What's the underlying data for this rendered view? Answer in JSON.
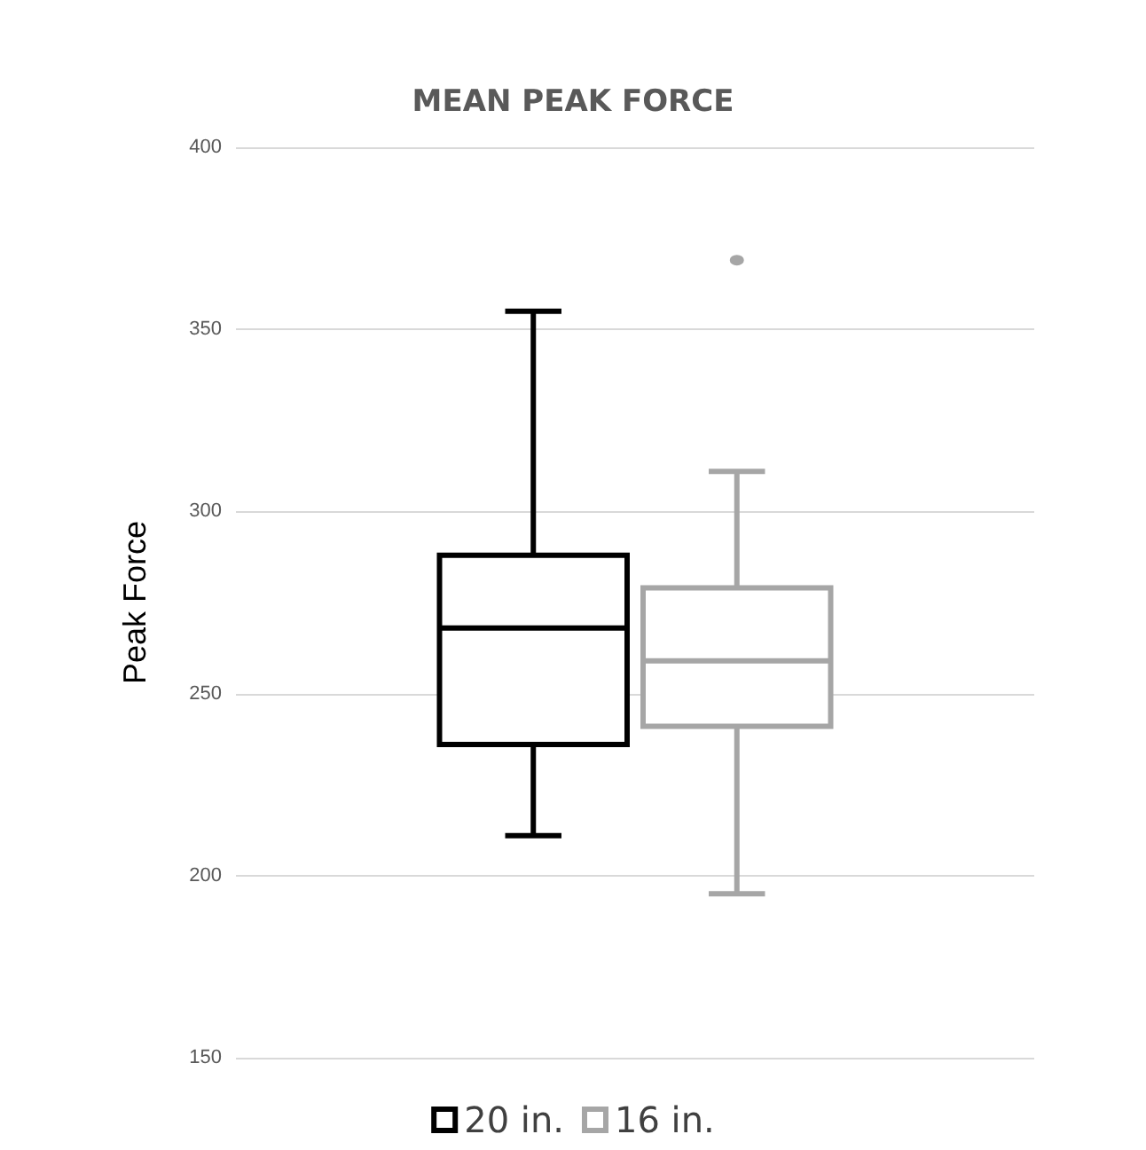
{
  "chart_data": {
    "type": "box",
    "title": "MEAN PEAK FORCE",
    "ylabel": "Peak Force",
    "categories": [
      null
    ],
    "series": [
      {
        "name": "20 in.",
        "color": "#000000",
        "boxes": [
          {
            "low": 211,
            "q1": 236,
            "median": 268,
            "q3": 288,
            "high": 355
          }
        ]
      },
      {
        "name": "16 in.",
        "color": "#a6a6a6",
        "boxes": [
          {
            "low": 195,
            "q1": 241,
            "median": 259,
            "q3": 279,
            "high": 311,
            "outliers": [
              369
            ]
          }
        ]
      }
    ],
    "ylim": [
      150,
      400
    ],
    "yticks": [
      150,
      200,
      250,
      300,
      350,
      400
    ],
    "grid": "y",
    "legend": "bottom"
  }
}
